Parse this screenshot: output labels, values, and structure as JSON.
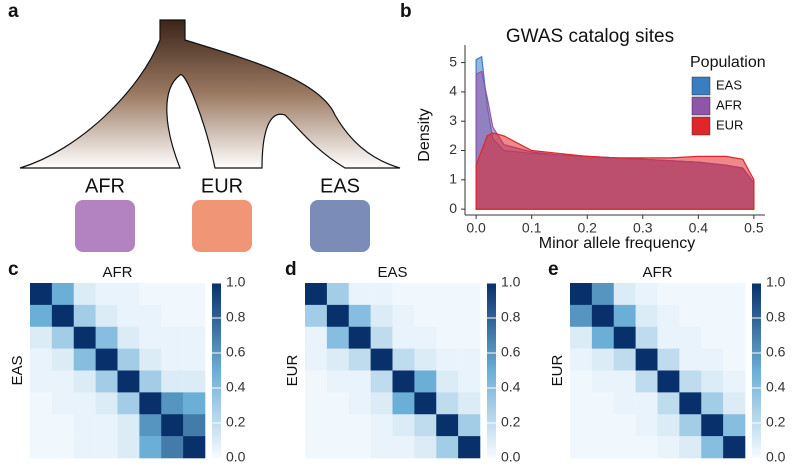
{
  "panel_labels": [
    "a",
    "b",
    "c",
    "d",
    "e"
  ],
  "tree": {
    "labels": [
      "AFR",
      "EUR",
      "EAS"
    ]
  },
  "chart_data": [
    {
      "type": "area",
      "title": "GWAS catalog sites",
      "x_label": "Minor allele frequency",
      "y_label": "Density",
      "legend_title": "Population",
      "x": [
        0,
        0.01,
        0.02,
        0.03,
        0.05,
        0.1,
        0.15,
        0.2,
        0.25,
        0.3,
        0.35,
        0.4,
        0.45,
        0.48,
        0.5
      ],
      "series": [
        {
          "name": "EAS",
          "color": "#3a7dc0",
          "values": [
            5.1,
            5.2,
            3.5,
            2.4,
            2.0,
            1.9,
            1.85,
            1.8,
            1.75,
            1.7,
            1.65,
            1.6,
            1.5,
            1.4,
            0.9
          ]
        },
        {
          "name": "AFR",
          "color": "#9055a8",
          "values": [
            4.6,
            4.7,
            3.8,
            2.8,
            2.2,
            1.95,
            1.85,
            1.8,
            1.75,
            1.7,
            1.65,
            1.6,
            1.5,
            1.4,
            0.9
          ]
        },
        {
          "name": "EUR",
          "color": "#e0262b",
          "values": [
            1.5,
            2.0,
            2.5,
            2.6,
            2.5,
            2.0,
            1.9,
            1.8,
            1.75,
            1.75,
            1.75,
            1.8,
            1.8,
            1.7,
            1.0
          ]
        }
      ],
      "xlim": [
        -0.02,
        0.52
      ],
      "ylim": [
        -0.2,
        5.6
      ],
      "xticks": [
        {
          "value": 0,
          "label": "0.0"
        },
        0.1,
        0.2,
        0.3,
        0.4,
        0.5
      ],
      "yticks": [
        0,
        1,
        2,
        3,
        4,
        5
      ]
    },
    {
      "type": "heatmap",
      "title": "AFR",
      "y_label": "EAS",
      "values": [
        [
          1,
          0.5,
          0.1,
          0.05,
          0.05,
          0.02,
          0.02,
          0.02
        ],
        [
          0.5,
          1,
          0.3,
          0.1,
          0.05,
          0.05,
          0.02,
          0.02
        ],
        [
          0.1,
          0.3,
          1,
          0.4,
          0.1,
          0.05,
          0.05,
          0.05
        ],
        [
          0.05,
          0.1,
          0.4,
          1,
          0.3,
          0.1,
          0.05,
          0.05
        ],
        [
          0.05,
          0.05,
          0.1,
          0.3,
          1,
          0.3,
          0.1,
          0.1
        ],
        [
          0.02,
          0.05,
          0.05,
          0.1,
          0.3,
          1,
          0.6,
          0.5
        ],
        [
          0.02,
          0.02,
          0.05,
          0.05,
          0.1,
          0.6,
          1,
          0.7
        ],
        [
          0.02,
          0.02,
          0.05,
          0.05,
          0.1,
          0.5,
          0.7,
          1
        ]
      ],
      "colorbar_lim": [
        0,
        1
      ],
      "colorbar_ticks": [
        {
          "value": 0,
          "label": "0.0"
        },
        0.2,
        0.4,
        0.6,
        0.8,
        {
          "value": 1,
          "label": "1.0"
        }
      ]
    },
    {
      "type": "heatmap",
      "title": "EAS",
      "y_label": "EUR",
      "values": [
        [
          1,
          0.3,
          0.05,
          0.05,
          0.02,
          0.02,
          0.02,
          0.02
        ],
        [
          0.3,
          1,
          0.4,
          0.1,
          0.05,
          0.02,
          0.02,
          0.02
        ],
        [
          0.05,
          0.4,
          1,
          0.2,
          0.05,
          0.05,
          0.02,
          0.02
        ],
        [
          0.05,
          0.1,
          0.2,
          1,
          0.2,
          0.1,
          0.05,
          0.05
        ],
        [
          0.02,
          0.05,
          0.05,
          0.2,
          1,
          0.5,
          0.1,
          0.05
        ],
        [
          0.02,
          0.02,
          0.05,
          0.1,
          0.5,
          1,
          0.2,
          0.1
        ],
        [
          0.02,
          0.02,
          0.02,
          0.05,
          0.1,
          0.2,
          1,
          0.3
        ],
        [
          0.02,
          0.02,
          0.02,
          0.05,
          0.05,
          0.1,
          0.3,
          1
        ]
      ],
      "colorbar_lim": [
        0,
        1
      ],
      "colorbar_ticks": [
        {
          "value": 0,
          "label": "0.0"
        },
        0.2,
        0.4,
        0.6,
        0.8,
        {
          "value": 1,
          "label": "1.0"
        }
      ]
    },
    {
      "type": "heatmap",
      "title": "AFR",
      "y_label": "EUR",
      "values": [
        [
          1,
          0.6,
          0.1,
          0.05,
          0.02,
          0.02,
          0.02,
          0.02
        ],
        [
          0.6,
          1,
          0.5,
          0.1,
          0.05,
          0.02,
          0.02,
          0.02
        ],
        [
          0.1,
          0.5,
          1,
          0.2,
          0.05,
          0.05,
          0.02,
          0.02
        ],
        [
          0.05,
          0.1,
          0.2,
          1,
          0.2,
          0.05,
          0.05,
          0.02
        ],
        [
          0.02,
          0.05,
          0.05,
          0.2,
          1,
          0.2,
          0.1,
          0.05
        ],
        [
          0.02,
          0.02,
          0.05,
          0.05,
          0.2,
          1,
          0.3,
          0.1
        ],
        [
          0.02,
          0.02,
          0.02,
          0.05,
          0.1,
          0.3,
          1,
          0.4
        ],
        [
          0.02,
          0.02,
          0.02,
          0.02,
          0.05,
          0.1,
          0.4,
          1
        ]
      ],
      "colorbar_lim": [
        0,
        1
      ],
      "colorbar_ticks": [
        {
          "value": 0,
          "label": "0.0"
        },
        0.2,
        0.4,
        0.6,
        0.8,
        {
          "value": 1,
          "label": "1.0"
        }
      ]
    }
  ]
}
